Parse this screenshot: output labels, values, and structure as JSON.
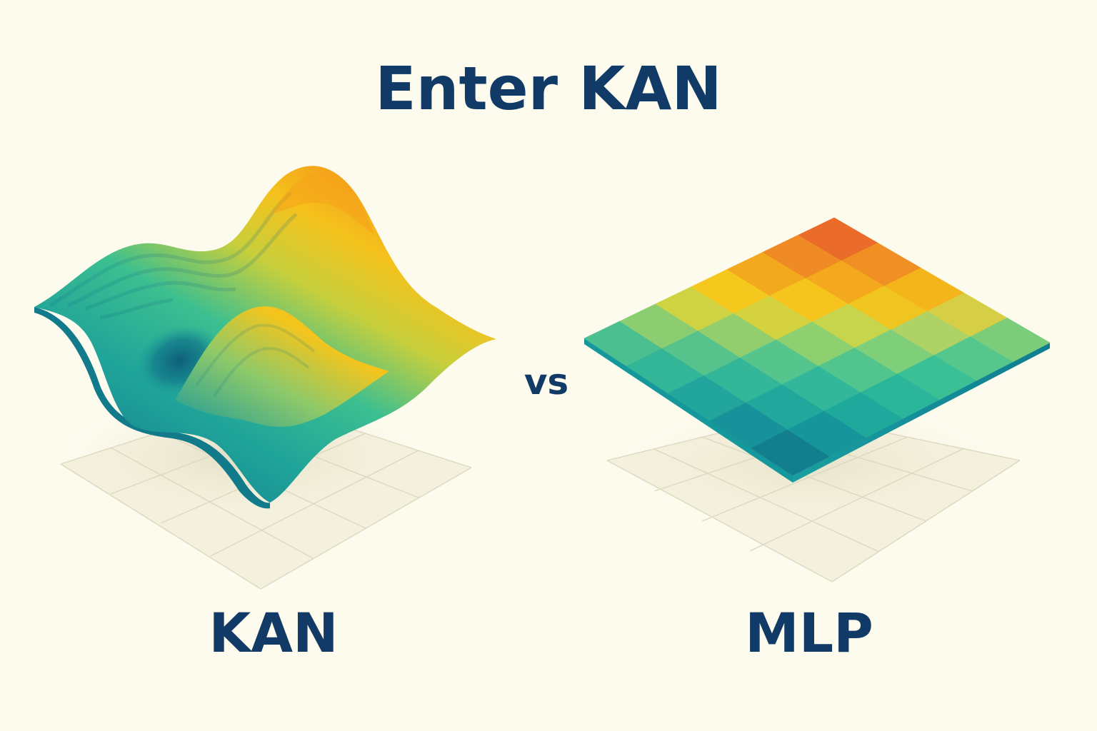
{
  "title": "Enter KAN",
  "vs_text": "vs",
  "left_panel": {
    "label": "KAN",
    "graphic": "smooth-wavy-surface"
  },
  "right_panel": {
    "label": "MLP",
    "graphic": "piecewise-flat-grid-surface",
    "grid_colors": [
      [
        "#137f8e",
        "#16959a",
        "#1fa89c",
        "#2bb59a",
        "#3bbf95",
        "#55c68c",
        "#7ccd7a"
      ],
      [
        "#18929a",
        "#22a79d",
        "#33b79a",
        "#52c58e",
        "#7fce79",
        "#aed265",
        "#d6cf45"
      ],
      [
        "#21a59d",
        "#34b799",
        "#55c58d",
        "#8dd070",
        "#c6d54c",
        "#f0c51f",
        "#f4b51c"
      ],
      [
        "#33b598",
        "#56c38c",
        "#93ce6e",
        "#d4d23f",
        "#f6c51d",
        "#f4a81e",
        "#f08f23"
      ],
      [
        "#4cbf90",
        "#8dcd71",
        "#cfd343",
        "#f5c81e",
        "#f3a91e",
        "#ef8a24",
        "#ea6b2a"
      ]
    ]
  },
  "colors": {
    "background": "#fdfbee",
    "text": "#113b66",
    "teal_dark": "#0e6f86",
    "teal": "#23a69b",
    "green": "#4fc48e",
    "yellow": "#f6c61d",
    "orange": "#f39a1c",
    "red_orange": "#e8672a",
    "floor": "#f1eedb",
    "floor_lines": "#dcd7bd"
  }
}
